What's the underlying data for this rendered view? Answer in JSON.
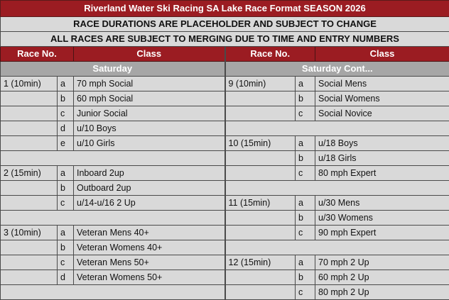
{
  "title": "Riverland Water Ski Racing SA Lake Race Format SEASON 2026",
  "notices": [
    "RACE DURATIONS ARE PLACEHOLDER AND SUBJECT TO CHANGE",
    "ALL RACES ARE SUBJECT TO MERGING DUE TO TIME AND ENTRY NUMBERS"
  ],
  "headers": {
    "race_no": "Race No.",
    "class": "Class"
  },
  "sections": {
    "left": "Saturday",
    "right": "Saturday Cont..."
  },
  "colors": {
    "header_red": "#9b1c22",
    "section_gray": "#a6a6a6",
    "cell_gray": "#d9d9d9"
  },
  "rows": [
    {
      "l": [
        "1 (10min)",
        "a",
        "70 mph Social"
      ],
      "r": [
        "9 (10min)",
        "a",
        "Social Mens"
      ]
    },
    {
      "l": [
        "",
        "b",
        "60 mph Social"
      ],
      "r": [
        "",
        "b",
        "Social Womens"
      ]
    },
    {
      "l": [
        "",
        "c",
        "Junior Social"
      ],
      "r": [
        "",
        "c",
        "Social Novice"
      ]
    },
    {
      "l": [
        "",
        "d",
        "u/10 Boys"
      ],
      "r": [
        "",
        "",
        ""
      ]
    },
    {
      "l": [
        "",
        "e",
        "u/10 Girls"
      ],
      "r": [
        "10 (15min)",
        "a",
        "u/18 Boys"
      ]
    },
    {
      "l": [
        "",
        "",
        ""
      ],
      "r": [
        "",
        "b",
        "u/18 Girls"
      ]
    },
    {
      "l": [
        "2 (15min)",
        "a",
        "Inboard 2up"
      ],
      "r": [
        "",
        "c",
        "80 mph Expert"
      ]
    },
    {
      "l": [
        "",
        "b",
        "Outboard 2up"
      ],
      "r": [
        "",
        "",
        ""
      ]
    },
    {
      "l": [
        "",
        "c",
        "u/14-u/16 2 Up"
      ],
      "r": [
        "11 (15min)",
        "a",
        "u/30 Mens"
      ]
    },
    {
      "l": [
        "",
        "",
        ""
      ],
      "r": [
        "",
        "b",
        "u/30 Womens"
      ]
    },
    {
      "l": [
        "3 (10min)",
        "a",
        "Veteran Mens 40+"
      ],
      "r": [
        "",
        "c",
        "90 mph Expert"
      ]
    },
    {
      "l": [
        "",
        "b",
        "Veteran Womens 40+"
      ],
      "r": [
        "",
        "",
        ""
      ]
    },
    {
      "l": [
        "",
        "c",
        "Veteran Mens 50+"
      ],
      "r": [
        "12 (15min)",
        "a",
        "70 mph 2 Up"
      ]
    },
    {
      "l": [
        "",
        "d",
        "Veteran Womens 50+"
      ],
      "r": [
        "",
        "b",
        "60 mph 2 Up"
      ]
    },
    {
      "l": [
        "",
        "",
        ""
      ],
      "r": [
        "",
        "c",
        "80 mph 2 Up"
      ]
    }
  ]
}
